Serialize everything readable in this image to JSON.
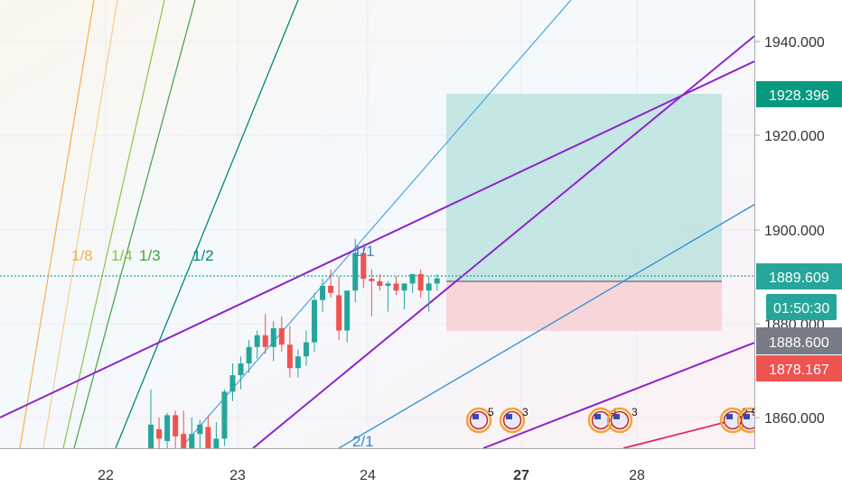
{
  "chart_data": {
    "type": "candlestick",
    "title": "",
    "xlabel": "",
    "ylabel": "",
    "ylim": [
      1850,
      1950
    ],
    "x_ticks": [
      "22",
      "23",
      "24",
      "27",
      "28"
    ],
    "y_ticks": [
      "1860.000",
      "1880.000",
      "1900.000",
      "1920.000",
      "1940.000"
    ],
    "price_labels": [
      {
        "name": "take-profit",
        "value": "1928.396",
        "color": "#089981"
      },
      {
        "name": "last-price",
        "value": "1889.609",
        "color": "#26a69a"
      },
      {
        "name": "countdown",
        "value": "01:50:30",
        "color": "#26a69a"
      },
      {
        "name": "crosshair",
        "value": "1888.600",
        "color": "#787b86"
      },
      {
        "name": "stop-loss",
        "value": "1878.167",
        "color": "#ef5350"
      }
    ],
    "position": {
      "entry": 1889.0,
      "take_profit": 1928.396,
      "stop_loss": 1878.167,
      "profit_color": "#b2dfdb",
      "loss_color": "#f7cdd0"
    },
    "gann_fan_labels": [
      {
        "text": "1/8",
        "color": "#f6b04a"
      },
      {
        "text": "1/4",
        "color": "#8bc34a"
      },
      {
        "text": "1/3",
        "color": "#43a047"
      },
      {
        "text": "1/2",
        "color": "#00897b"
      },
      {
        "text": "1/1",
        "color": "#2b8fd6"
      },
      {
        "text": "2/1",
        "color": "#2b8fd6"
      }
    ],
    "event_markers": [
      {
        "type": "us-economic-event",
        "count": "5"
      },
      {
        "type": "us-economic-event",
        "count": "3"
      },
      {
        "type": "us-economic-event",
        "count": "4"
      },
      {
        "type": "us-economic-event",
        "count": "3"
      },
      {
        "type": "us-economic-event",
        "count": "2"
      },
      {
        "type": "us-economic-event",
        "count": "9"
      }
    ],
    "colors": {
      "up": "#26a69a",
      "down": "#ef5350",
      "channel": "#8e24c9"
    },
    "candles": [
      {
        "o": 1853.0,
        "h": 1866.0,
        "l": 1850.0,
        "c": 1858.5
      },
      {
        "o": 1857.5,
        "h": 1860.0,
        "l": 1853.0,
        "c": 1855.5
      },
      {
        "o": 1855.0,
        "h": 1861.0,
        "l": 1852.5,
        "c": 1860.5
      },
      {
        "o": 1860.5,
        "h": 1861.5,
        "l": 1853.0,
        "c": 1856.0
      },
      {
        "o": 1856.5,
        "h": 1861.5,
        "l": 1850.0,
        "c": 1852.0
      },
      {
        "o": 1852.0,
        "h": 1860.0,
        "l": 1847.0,
        "c": 1856.5
      },
      {
        "o": 1856.5,
        "h": 1859.5,
        "l": 1852.0,
        "c": 1858.5
      },
      {
        "o": 1858.0,
        "h": 1860.5,
        "l": 1852.0,
        "c": 1853.5
      },
      {
        "o": 1853.0,
        "h": 1859.0,
        "l": 1850.0,
        "c": 1855.5
      },
      {
        "o": 1855.5,
        "h": 1866.0,
        "l": 1854.0,
        "c": 1865.5
      },
      {
        "o": 1865.5,
        "h": 1871.5,
        "l": 1863.5,
        "c": 1869.0
      },
      {
        "o": 1869.0,
        "h": 1873.0,
        "l": 1866.0,
        "c": 1871.5
      },
      {
        "o": 1871.5,
        "h": 1876.5,
        "l": 1869.5,
        "c": 1875.0
      },
      {
        "o": 1875.0,
        "h": 1878.5,
        "l": 1872.5,
        "c": 1877.5
      },
      {
        "o": 1877.5,
        "h": 1882.0,
        "l": 1873.5,
        "c": 1875.0
      },
      {
        "o": 1875.0,
        "h": 1880.5,
        "l": 1872.0,
        "c": 1879.0
      },
      {
        "o": 1879.0,
        "h": 1881.5,
        "l": 1874.0,
        "c": 1875.5
      },
      {
        "o": 1875.5,
        "h": 1879.5,
        "l": 1868.5,
        "c": 1870.5
      },
      {
        "o": 1870.5,
        "h": 1874.5,
        "l": 1868.5,
        "c": 1873.0
      },
      {
        "o": 1873.0,
        "h": 1878.5,
        "l": 1871.0,
        "c": 1876.0
      },
      {
        "o": 1876.0,
        "h": 1886.5,
        "l": 1874.0,
        "c": 1885.0
      },
      {
        "o": 1885.0,
        "h": 1889.5,
        "l": 1882.5,
        "c": 1888.0
      },
      {
        "o": 1888.0,
        "h": 1891.5,
        "l": 1885.5,
        "c": 1886.5
      },
      {
        "o": 1886.0,
        "h": 1890.0,
        "l": 1876.5,
        "c": 1878.5
      },
      {
        "o": 1878.5,
        "h": 1886.0,
        "l": 1876.0,
        "c": 1887.0
      },
      {
        "o": 1887.0,
        "h": 1898.0,
        "l": 1884.5,
        "c": 1895.0
      },
      {
        "o": 1895.0,
        "h": 1897.0,
        "l": 1887.5,
        "c": 1889.5
      },
      {
        "o": 1889.5,
        "h": 1891.5,
        "l": 1881.5,
        "c": 1889.0
      },
      {
        "o": 1889.0,
        "h": 1890.5,
        "l": 1887.0,
        "c": 1888.0
      },
      {
        "o": 1888.0,
        "h": 1889.0,
        "l": 1882.5,
        "c": 1888.5
      },
      {
        "o": 1888.5,
        "h": 1890.0,
        "l": 1886.0,
        "c": 1887.0
      },
      {
        "o": 1887.0,
        "h": 1888.5,
        "l": 1883.0,
        "c": 1888.5
      },
      {
        "o": 1888.5,
        "h": 1890.5,
        "l": 1886.5,
        "c": 1890.5
      },
      {
        "o": 1890.5,
        "h": 1891.5,
        "l": 1885.5,
        "c": 1887.0
      },
      {
        "o": 1887.0,
        "h": 1890.0,
        "l": 1882.5,
        "c": 1888.5
      },
      {
        "o": 1888.5,
        "h": 1890.5,
        "l": 1887.0,
        "c": 1889.6
      }
    ]
  }
}
